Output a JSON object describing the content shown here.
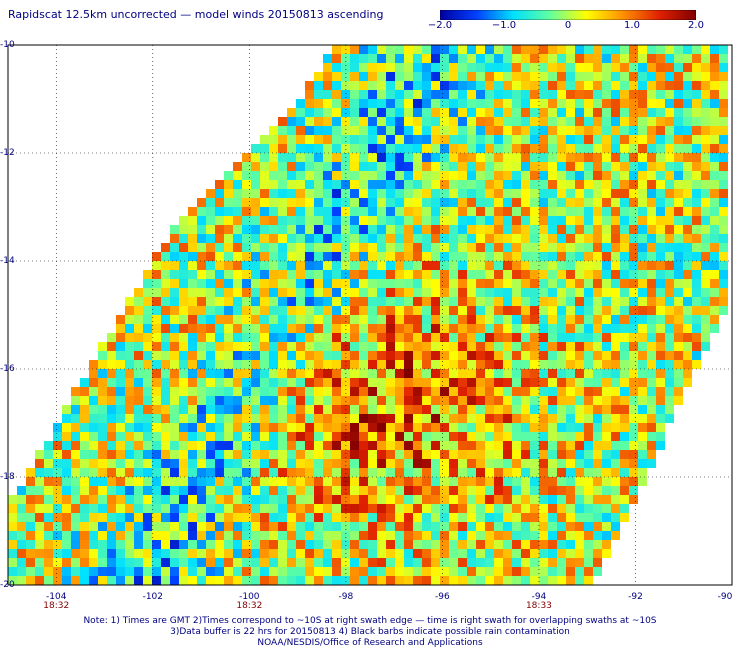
{
  "title": "Rapidscat 12.5km uncorrected — model winds 20150813 ascending",
  "colorbar": {
    "labels": [
      "−2.0",
      "−1.0",
      "0",
      "1.0",
      "2.0"
    ],
    "values": [
      -2.0,
      -1.0,
      0,
      1.0,
      2.0
    ],
    "range": [
      -2.0,
      2.0
    ],
    "colors": [
      "#0000a0",
      "#0040ff",
      "#00e0ff",
      "#60ffa0",
      "#ffff00",
      "#ff9000",
      "#e02000",
      "#800000"
    ]
  },
  "map": {
    "lon_range": [
      -105,
      -90
    ],
    "lat_range": [
      -20,
      -10
    ],
    "lon_ticks": [
      {
        "value": -104,
        "label": "-104"
      },
      {
        "value": -102,
        "label": "-102"
      },
      {
        "value": -100,
        "label": "-100"
      },
      {
        "value": -98,
        "label": "-98"
      },
      {
        "value": -96,
        "label": "-96"
      },
      {
        "value": -94,
        "label": "-94"
      },
      {
        "value": -92,
        "label": "-92"
      },
      {
        "value": -90,
        "label": "-90"
      }
    ],
    "lat_ticks": [
      {
        "value": -10,
        "label": "-10"
      },
      {
        "value": -12,
        "label": "-12"
      },
      {
        "value": -14,
        "label": "-14"
      },
      {
        "value": -16,
        "label": "-16"
      },
      {
        "value": -18,
        "label": "-18"
      },
      {
        "value": -20,
        "label": "-20"
      }
    ],
    "swath_times": [
      {
        "lon": -104,
        "label": "18:32"
      },
      {
        "lon": -100,
        "label": "18:32"
      },
      {
        "lon": -94,
        "label": "18:33"
      }
    ],
    "grid": true
  },
  "notes": [
    "Note: 1) Times are GMT 2)Times correspond to ~10S at right swath edge — time is right swath for overlapping swaths at ~10S",
    "3)Data buffer is 22 hrs for 20150813 4) Black barbs indicate possible rain contamination",
    "NOAA/NESDIS/Office of Research and Applications"
  ]
}
